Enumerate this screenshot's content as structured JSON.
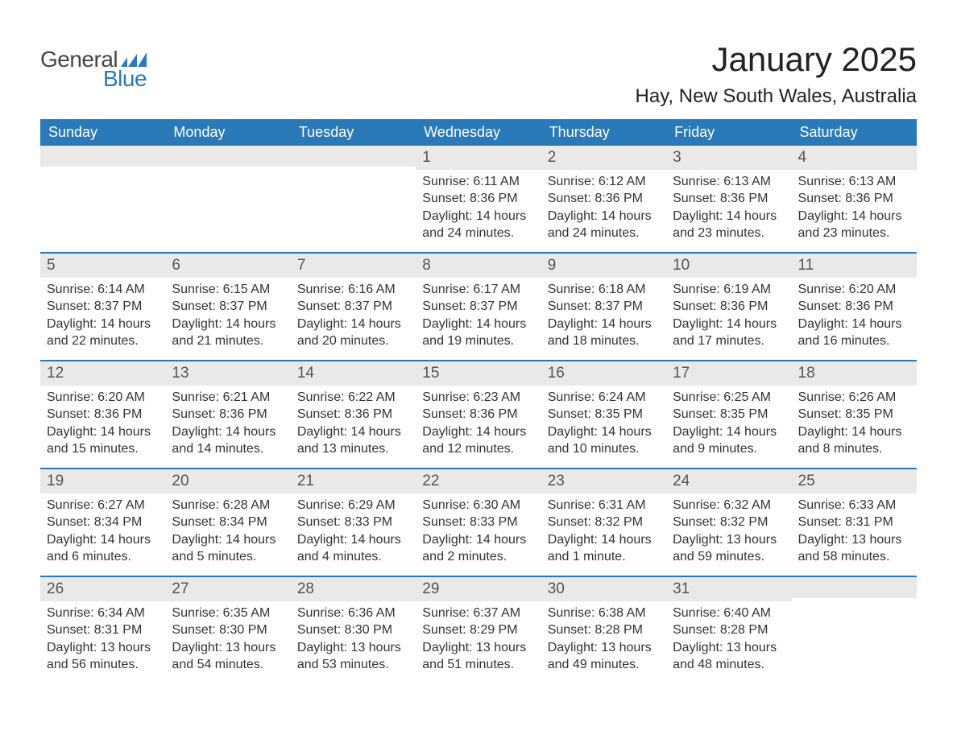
{
  "logo": {
    "text1": "General",
    "text2": "Blue",
    "flag_color": "#2a7ab9",
    "text1_color": "#444444"
  },
  "title": "January 2025",
  "location": "Hay, New South Wales, Australia",
  "colors": {
    "header_bg": "#2a7ab9",
    "header_text": "#ffffff",
    "daynum_bg": "#e9e9e9",
    "daynum_text": "#555555",
    "body_text": "#333333",
    "week_border": "#2a7ab9",
    "page_bg": "#ffffff"
  },
  "typography": {
    "title_fontsize": 42,
    "location_fontsize": 24,
    "weekday_fontsize": 18,
    "daynum_fontsize": 19,
    "body_fontsize": 16
  },
  "weekdays": [
    "Sunday",
    "Monday",
    "Tuesday",
    "Wednesday",
    "Thursday",
    "Friday",
    "Saturday"
  ],
  "weeks": [
    [
      {
        "n": "",
        "sunrise": "",
        "sunset": "",
        "daylight": ""
      },
      {
        "n": "",
        "sunrise": "",
        "sunset": "",
        "daylight": ""
      },
      {
        "n": "",
        "sunrise": "",
        "sunset": "",
        "daylight": ""
      },
      {
        "n": "1",
        "sunrise": "Sunrise: 6:11 AM",
        "sunset": "Sunset: 8:36 PM",
        "daylight": "Daylight: 14 hours and 24 minutes."
      },
      {
        "n": "2",
        "sunrise": "Sunrise: 6:12 AM",
        "sunset": "Sunset: 8:36 PM",
        "daylight": "Daylight: 14 hours and 24 minutes."
      },
      {
        "n": "3",
        "sunrise": "Sunrise: 6:13 AM",
        "sunset": "Sunset: 8:36 PM",
        "daylight": "Daylight: 14 hours and 23 minutes."
      },
      {
        "n": "4",
        "sunrise": "Sunrise: 6:13 AM",
        "sunset": "Sunset: 8:36 PM",
        "daylight": "Daylight: 14 hours and 23 minutes."
      }
    ],
    [
      {
        "n": "5",
        "sunrise": "Sunrise: 6:14 AM",
        "sunset": "Sunset: 8:37 PM",
        "daylight": "Daylight: 14 hours and 22 minutes."
      },
      {
        "n": "6",
        "sunrise": "Sunrise: 6:15 AM",
        "sunset": "Sunset: 8:37 PM",
        "daylight": "Daylight: 14 hours and 21 minutes."
      },
      {
        "n": "7",
        "sunrise": "Sunrise: 6:16 AM",
        "sunset": "Sunset: 8:37 PM",
        "daylight": "Daylight: 14 hours and 20 minutes."
      },
      {
        "n": "8",
        "sunrise": "Sunrise: 6:17 AM",
        "sunset": "Sunset: 8:37 PM",
        "daylight": "Daylight: 14 hours and 19 minutes."
      },
      {
        "n": "9",
        "sunrise": "Sunrise: 6:18 AM",
        "sunset": "Sunset: 8:37 PM",
        "daylight": "Daylight: 14 hours and 18 minutes."
      },
      {
        "n": "10",
        "sunrise": "Sunrise: 6:19 AM",
        "sunset": "Sunset: 8:36 PM",
        "daylight": "Daylight: 14 hours and 17 minutes."
      },
      {
        "n": "11",
        "sunrise": "Sunrise: 6:20 AM",
        "sunset": "Sunset: 8:36 PM",
        "daylight": "Daylight: 14 hours and 16 minutes."
      }
    ],
    [
      {
        "n": "12",
        "sunrise": "Sunrise: 6:20 AM",
        "sunset": "Sunset: 8:36 PM",
        "daylight": "Daylight: 14 hours and 15 minutes."
      },
      {
        "n": "13",
        "sunrise": "Sunrise: 6:21 AM",
        "sunset": "Sunset: 8:36 PM",
        "daylight": "Daylight: 14 hours and 14 minutes."
      },
      {
        "n": "14",
        "sunrise": "Sunrise: 6:22 AM",
        "sunset": "Sunset: 8:36 PM",
        "daylight": "Daylight: 14 hours and 13 minutes."
      },
      {
        "n": "15",
        "sunrise": "Sunrise: 6:23 AM",
        "sunset": "Sunset: 8:36 PM",
        "daylight": "Daylight: 14 hours and 12 minutes."
      },
      {
        "n": "16",
        "sunrise": "Sunrise: 6:24 AM",
        "sunset": "Sunset: 8:35 PM",
        "daylight": "Daylight: 14 hours and 10 minutes."
      },
      {
        "n": "17",
        "sunrise": "Sunrise: 6:25 AM",
        "sunset": "Sunset: 8:35 PM",
        "daylight": "Daylight: 14 hours and 9 minutes."
      },
      {
        "n": "18",
        "sunrise": "Sunrise: 6:26 AM",
        "sunset": "Sunset: 8:35 PM",
        "daylight": "Daylight: 14 hours and 8 minutes."
      }
    ],
    [
      {
        "n": "19",
        "sunrise": "Sunrise: 6:27 AM",
        "sunset": "Sunset: 8:34 PM",
        "daylight": "Daylight: 14 hours and 6 minutes."
      },
      {
        "n": "20",
        "sunrise": "Sunrise: 6:28 AM",
        "sunset": "Sunset: 8:34 PM",
        "daylight": "Daylight: 14 hours and 5 minutes."
      },
      {
        "n": "21",
        "sunrise": "Sunrise: 6:29 AM",
        "sunset": "Sunset: 8:33 PM",
        "daylight": "Daylight: 14 hours and 4 minutes."
      },
      {
        "n": "22",
        "sunrise": "Sunrise: 6:30 AM",
        "sunset": "Sunset: 8:33 PM",
        "daylight": "Daylight: 14 hours and 2 minutes."
      },
      {
        "n": "23",
        "sunrise": "Sunrise: 6:31 AM",
        "sunset": "Sunset: 8:32 PM",
        "daylight": "Daylight: 14 hours and 1 minute."
      },
      {
        "n": "24",
        "sunrise": "Sunrise: 6:32 AM",
        "sunset": "Sunset: 8:32 PM",
        "daylight": "Daylight: 13 hours and 59 minutes."
      },
      {
        "n": "25",
        "sunrise": "Sunrise: 6:33 AM",
        "sunset": "Sunset: 8:31 PM",
        "daylight": "Daylight: 13 hours and 58 minutes."
      }
    ],
    [
      {
        "n": "26",
        "sunrise": "Sunrise: 6:34 AM",
        "sunset": "Sunset: 8:31 PM",
        "daylight": "Daylight: 13 hours and 56 minutes."
      },
      {
        "n": "27",
        "sunrise": "Sunrise: 6:35 AM",
        "sunset": "Sunset: 8:30 PM",
        "daylight": "Daylight: 13 hours and 54 minutes."
      },
      {
        "n": "28",
        "sunrise": "Sunrise: 6:36 AM",
        "sunset": "Sunset: 8:30 PM",
        "daylight": "Daylight: 13 hours and 53 minutes."
      },
      {
        "n": "29",
        "sunrise": "Sunrise: 6:37 AM",
        "sunset": "Sunset: 8:29 PM",
        "daylight": "Daylight: 13 hours and 51 minutes."
      },
      {
        "n": "30",
        "sunrise": "Sunrise: 6:38 AM",
        "sunset": "Sunset: 8:28 PM",
        "daylight": "Daylight: 13 hours and 49 minutes."
      },
      {
        "n": "31",
        "sunrise": "Sunrise: 6:40 AM",
        "sunset": "Sunset: 8:28 PM",
        "daylight": "Daylight: 13 hours and 48 minutes."
      },
      {
        "n": "",
        "sunrise": "",
        "sunset": "",
        "daylight": ""
      }
    ]
  ]
}
